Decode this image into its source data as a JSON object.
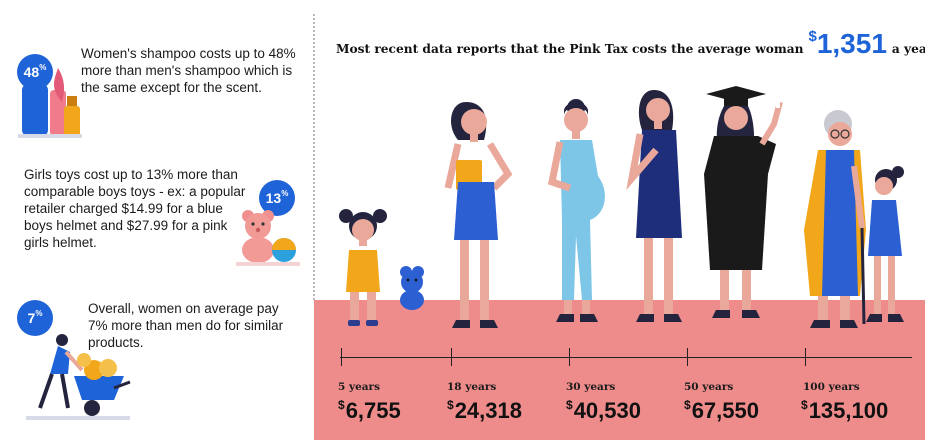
{
  "facts": [
    {
      "badge": "48",
      "badge_sup": "%",
      "text": "Women's shampoo costs up to 48% more than men's shampoo which is the same except for the scent."
    },
    {
      "badge": "13",
      "badge_sup": "%",
      "text": "Girls toys cost up to 13% more than comparable boys toys - ex: a popular retailer charged $14.99 for a blue boys helmet and $27.99 for a pink girls helmet."
    },
    {
      "badge": "7",
      "badge_sup": "%",
      "text": "Overall, women on average pay 7% more than men do for similar products."
    }
  ],
  "headline": {
    "before": "Most recent data reports that the Pink Tax costs the average woman",
    "currency": "$",
    "amount": "1,351",
    "after": "a year."
  },
  "timeline": [
    {
      "label": "5 years",
      "currency": "$",
      "value": "6,755"
    },
    {
      "label": "18 years",
      "currency": "$",
      "value": "24,318"
    },
    {
      "label": "30 years",
      "currency": "$",
      "value": "40,530"
    },
    {
      "label": "50 years",
      "currency": "$",
      "value": "67,550"
    },
    {
      "label": "100 years",
      "currency": "$",
      "value": "135,100"
    }
  ],
  "colors": {
    "accent_blue": "#1f63d8",
    "ground_pink": "#ee8b8b",
    "skin": "#e9a89a",
    "hair": "#24243f",
    "mustard": "#f2a71b"
  },
  "icons": [
    "shampoo-bottles-icon",
    "teddy-bear-toy-icon",
    "wheelbarrow-coins-icon",
    "child-figure",
    "teen-figure",
    "pregnant-woman-figure",
    "graduate-figure",
    "grandmother-figure"
  ]
}
